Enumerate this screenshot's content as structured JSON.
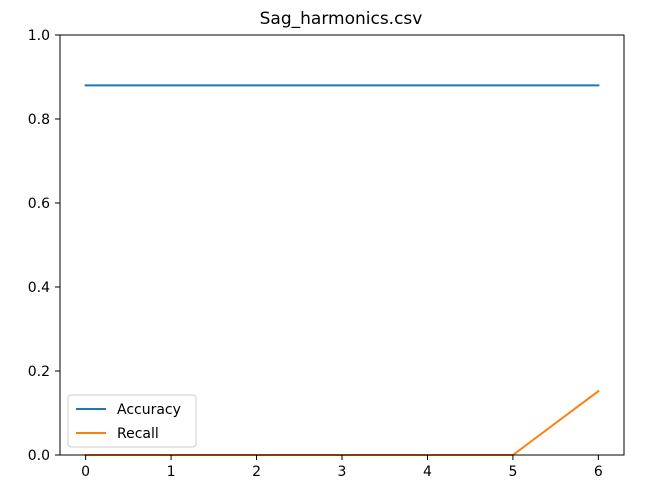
{
  "chart_data": {
    "type": "line",
    "title": "Sag_harmonics.csv",
    "xlabel": "",
    "ylabel": "",
    "x": [
      0,
      1,
      2,
      3,
      4,
      5,
      6
    ],
    "xlim": [
      -0.3,
      6.3
    ],
    "ylim": [
      0.0,
      1.0
    ],
    "x_ticks": [
      "0",
      "1",
      "2",
      "3",
      "4",
      "5",
      "6"
    ],
    "y_ticks": [
      "0.0",
      "0.2",
      "0.4",
      "0.6",
      "0.8",
      "1.0"
    ],
    "grid": false,
    "legend_position": "lower-left",
    "series": [
      {
        "name": "Accuracy",
        "color": "#1f77b4",
        "values": [
          0.88,
          0.88,
          0.88,
          0.88,
          0.88,
          0.88,
          0.88
        ]
      },
      {
        "name": "Recall",
        "color": "#ff7f0e",
        "values": [
          0.0,
          0.0,
          0.0,
          0.0,
          0.0,
          0.0,
          0.152
        ]
      }
    ]
  }
}
